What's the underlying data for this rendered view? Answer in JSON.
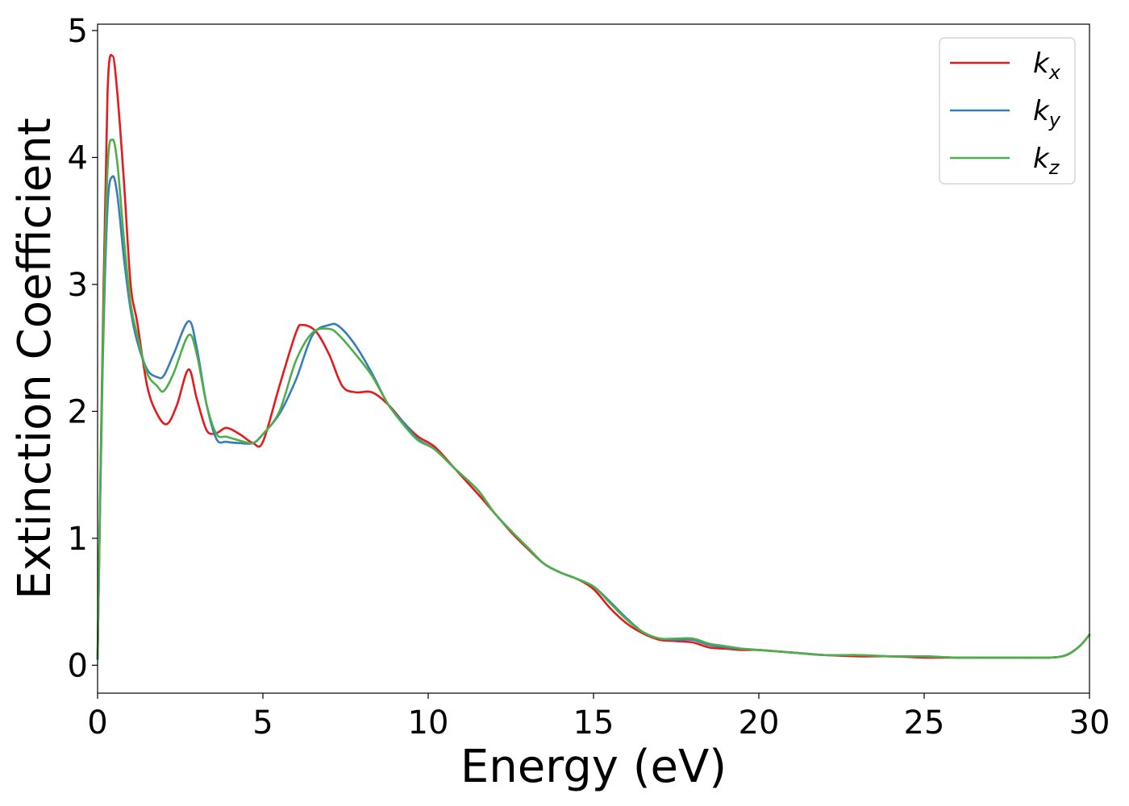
{
  "chart_data": {
    "type": "line",
    "title": "",
    "xlabel": "Energy (eV)",
    "ylabel": "Extinction Coefficient",
    "xlim": [
      0,
      30
    ],
    "ylim": [
      -0.22,
      5.05
    ],
    "xticks": [
      0,
      5,
      10,
      15,
      20,
      25,
      30
    ],
    "yticks": [
      0,
      1,
      2,
      3,
      4,
      5
    ],
    "grid": false,
    "legend_position": "top-right",
    "series": [
      {
        "name": "k_x",
        "legend_main": "k",
        "legend_sub": "x",
        "color": "#e41a1c",
        "x": [
          0,
          0.15,
          0.3,
          0.45,
          0.6,
          0.8,
          1.0,
          1.2,
          1.5,
          1.8,
          2.1,
          2.4,
          2.75,
          3.0,
          3.3,
          3.6,
          3.9,
          4.3,
          4.7,
          5.0,
          5.5,
          6.0,
          6.2,
          6.6,
          7.0,
          7.4,
          7.8,
          8.3,
          8.8,
          9.3,
          9.7,
          10.2,
          10.8,
          11.5,
          12.0,
          12.5,
          13.0,
          13.5,
          14.0,
          14.5,
          15.0,
          15.5,
          16.0,
          16.5,
          17.0,
          17.5,
          18.0,
          18.5,
          19.0,
          19.5,
          20.0,
          21.0,
          22.0,
          23.0,
          24.0,
          25.0,
          26.0,
          27.0,
          28.0,
          28.8,
          29.3,
          29.7,
          30.0
        ],
        "y": [
          0.05,
          2.5,
          4.5,
          4.8,
          4.5,
          3.8,
          3.0,
          2.7,
          2.2,
          1.98,
          1.9,
          2.05,
          2.33,
          2.1,
          1.85,
          1.83,
          1.87,
          1.82,
          1.75,
          1.76,
          2.2,
          2.62,
          2.68,
          2.63,
          2.45,
          2.2,
          2.15,
          2.15,
          2.05,
          1.9,
          1.8,
          1.72,
          1.55,
          1.35,
          1.2,
          1.05,
          0.92,
          0.8,
          0.73,
          0.68,
          0.6,
          0.45,
          0.33,
          0.25,
          0.2,
          0.19,
          0.18,
          0.14,
          0.13,
          0.12,
          0.12,
          0.1,
          0.08,
          0.07,
          0.07,
          0.06,
          0.06,
          0.06,
          0.06,
          0.06,
          0.08,
          0.15,
          0.24
        ]
      },
      {
        "name": "k_y",
        "legend_main": "k",
        "legend_sub": "y",
        "color": "#377eb8",
        "x": [
          0,
          0.15,
          0.3,
          0.45,
          0.6,
          0.8,
          1.0,
          1.2,
          1.5,
          1.8,
          2.0,
          2.3,
          2.75,
          3.0,
          3.3,
          3.6,
          3.9,
          4.3,
          4.7,
          5.0,
          5.5,
          6.0,
          6.5,
          7.0,
          7.3,
          7.8,
          8.3,
          8.8,
          9.3,
          9.7,
          10.2,
          10.8,
          11.5,
          12.0,
          12.5,
          13.0,
          13.5,
          14.0,
          14.5,
          15.0,
          15.5,
          16.0,
          16.5,
          17.0,
          17.5,
          18.0,
          18.5,
          19.0,
          19.5,
          20.0,
          21.0,
          22.0,
          23.0,
          24.0,
          25.0,
          26.0,
          27.0,
          28.0,
          28.8,
          29.3,
          29.7,
          30.0
        ],
        "y": [
          0.05,
          2.3,
          3.6,
          3.85,
          3.7,
          3.2,
          2.8,
          2.55,
          2.33,
          2.27,
          2.28,
          2.45,
          2.71,
          2.5,
          2.05,
          1.78,
          1.76,
          1.75,
          1.75,
          1.82,
          1.98,
          2.25,
          2.6,
          2.68,
          2.67,
          2.52,
          2.3,
          2.05,
          1.9,
          1.78,
          1.7,
          1.55,
          1.38,
          1.2,
          1.06,
          0.93,
          0.8,
          0.73,
          0.68,
          0.62,
          0.5,
          0.37,
          0.26,
          0.21,
          0.2,
          0.2,
          0.16,
          0.14,
          0.13,
          0.12,
          0.1,
          0.08,
          0.08,
          0.07,
          0.07,
          0.06,
          0.06,
          0.06,
          0.06,
          0.08,
          0.15,
          0.24
        ]
      },
      {
        "name": "k_z",
        "legend_main": "k",
        "legend_sub": "z",
        "color": "#4daf4a",
        "x": [
          0,
          0.15,
          0.3,
          0.45,
          0.6,
          0.8,
          1.0,
          1.2,
          1.5,
          1.8,
          2.0,
          2.3,
          2.75,
          3.0,
          3.3,
          3.6,
          3.9,
          4.3,
          4.7,
          5.0,
          5.5,
          6.0,
          6.5,
          7.0,
          7.3,
          7.8,
          8.3,
          8.8,
          9.3,
          9.7,
          10.2,
          10.8,
          11.5,
          12.0,
          12.5,
          13.0,
          13.5,
          14.0,
          14.5,
          15.0,
          15.5,
          16.0,
          16.5,
          17.0,
          17.5,
          18.0,
          18.5,
          19.0,
          19.5,
          20.0,
          21.0,
          22.0,
          23.0,
          24.0,
          25.0,
          26.0,
          27.0,
          28.0,
          28.8,
          29.3,
          29.7,
          30.0
        ],
        "y": [
          0.05,
          2.4,
          3.9,
          4.14,
          3.95,
          3.35,
          2.85,
          2.6,
          2.3,
          2.2,
          2.16,
          2.3,
          2.6,
          2.45,
          2.05,
          1.82,
          1.8,
          1.77,
          1.75,
          1.82,
          2.0,
          2.4,
          2.62,
          2.65,
          2.6,
          2.45,
          2.28,
          2.05,
          1.88,
          1.77,
          1.7,
          1.55,
          1.38,
          1.2,
          1.06,
          0.93,
          0.8,
          0.73,
          0.68,
          0.62,
          0.49,
          0.36,
          0.26,
          0.21,
          0.21,
          0.21,
          0.17,
          0.15,
          0.13,
          0.12,
          0.1,
          0.08,
          0.08,
          0.07,
          0.07,
          0.06,
          0.06,
          0.06,
          0.06,
          0.08,
          0.15,
          0.24
        ]
      }
    ]
  }
}
